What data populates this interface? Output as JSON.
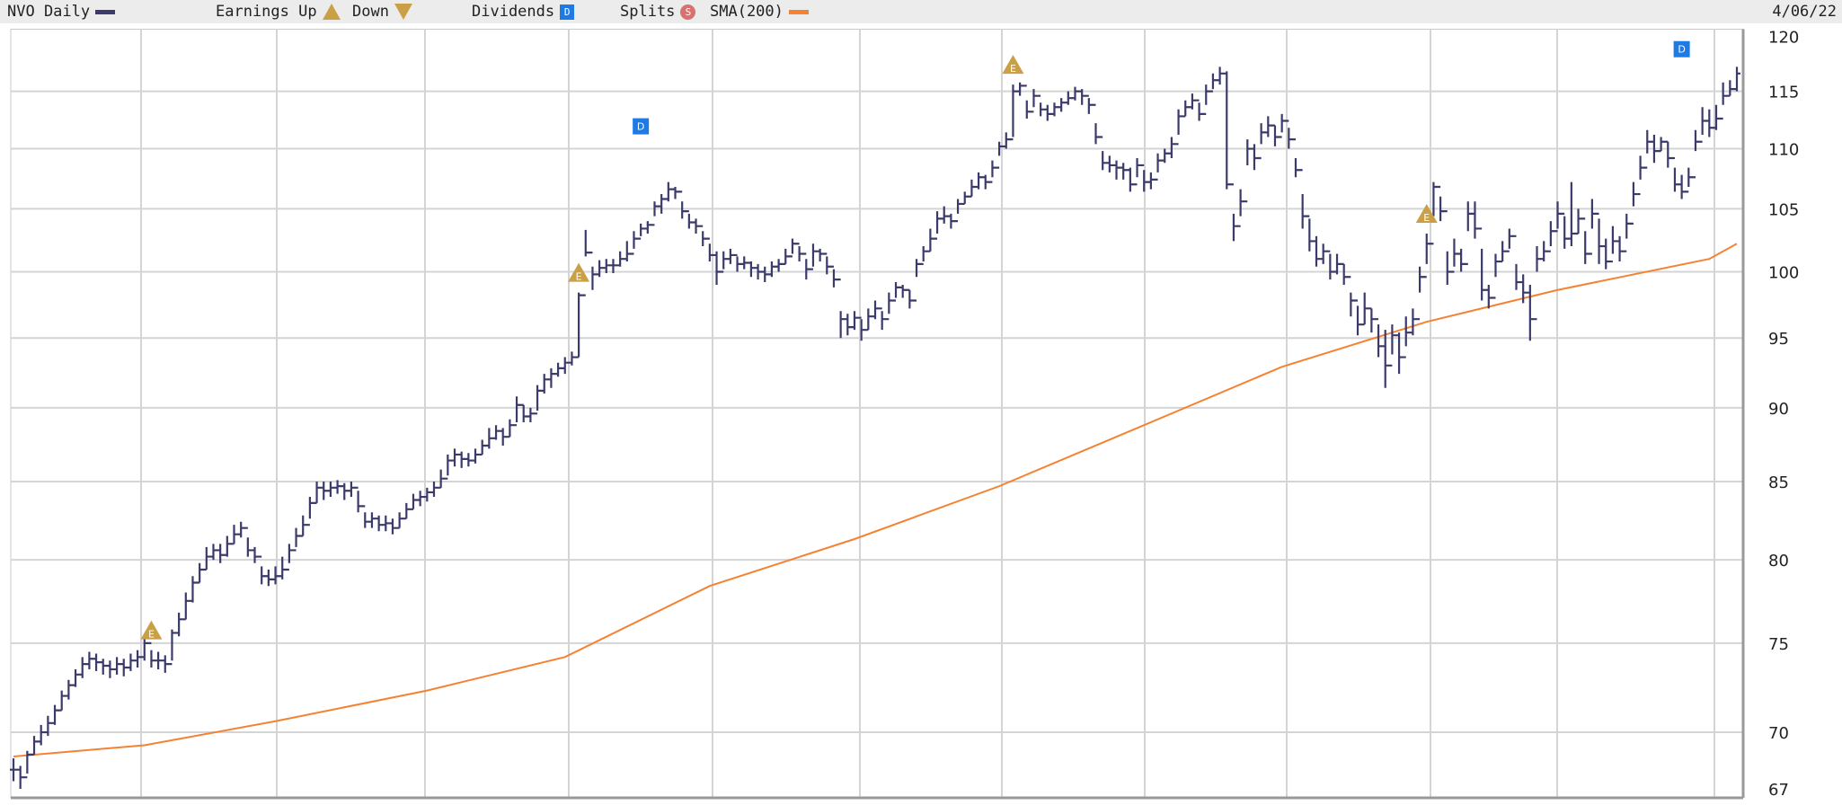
{
  "header": {
    "symbol_label": "NVO Daily",
    "earnings_up_label": "Earnings Up",
    "down_label": "Down",
    "dividends_label": "Dividends",
    "splits_label": "Splits",
    "sma_label": "SMA(200)",
    "date": "4/06/22",
    "earnings_glyph": "E",
    "dividend_glyph": "D",
    "split_glyph": "S"
  },
  "colors": {
    "price": "#3b3b6b",
    "sma": "#f58232",
    "earnings": "#c9a046",
    "dividend": "#1e7be6",
    "split": "#d9716e",
    "grid": "#d4d4d4"
  },
  "chart_data": {
    "type": "ohlc-bar",
    "symbol": "NVO",
    "y_scale": "log",
    "ylim": [
      67,
      120
    ],
    "y_ticks": [
      "120",
      "115",
      "110",
      "105",
      "100",
      "95",
      "90",
      "85",
      "80",
      "75",
      "70",
      "67"
    ],
    "grid": true,
    "bar_format": [
      "low",
      "high",
      "close"
    ],
    "bars": [
      [
        67.4,
        68.6,
        68.0
      ],
      [
        67.0,
        68.2,
        67.6
      ],
      [
        67.8,
        69.0,
        68.8
      ],
      [
        68.8,
        69.8,
        69.5
      ],
      [
        69.3,
        70.4,
        70.0
      ],
      [
        69.8,
        70.9,
        70.5
      ],
      [
        70.4,
        71.5,
        71.2
      ],
      [
        71.2,
        72.3,
        72.0
      ],
      [
        71.8,
        72.9,
        72.6
      ],
      [
        72.5,
        73.5,
        73.2
      ],
      [
        73.0,
        74.2,
        73.8
      ],
      [
        73.5,
        74.5,
        74.1
      ],
      [
        73.4,
        74.4,
        73.9
      ],
      [
        73.2,
        74.1,
        73.7
      ],
      [
        73.0,
        74.0,
        73.5
      ],
      [
        73.2,
        74.2,
        73.8
      ],
      [
        73.1,
        74.1,
        73.6
      ],
      [
        73.4,
        74.4,
        74.0
      ],
      [
        73.6,
        74.6,
        74.2
      ],
      [
        74.0,
        75.4,
        75.0
      ],
      [
        73.6,
        74.6,
        74.0
      ],
      [
        73.5,
        74.5,
        74.0
      ],
      [
        73.3,
        74.3,
        73.8
      ],
      [
        74.0,
        75.8,
        75.6
      ],
      [
        75.4,
        76.8,
        76.4
      ],
      [
        76.4,
        78.0,
        77.5
      ],
      [
        77.4,
        79.0,
        78.6
      ],
      [
        78.6,
        79.8,
        79.4
      ],
      [
        79.4,
        80.8,
        80.2
      ],
      [
        80.0,
        81.0,
        80.6
      ],
      [
        79.8,
        81.0,
        80.3
      ],
      [
        80.2,
        81.5,
        81.0
      ],
      [
        81.0,
        82.2,
        81.6
      ],
      [
        81.4,
        82.4,
        82.0
      ],
      [
        80.2,
        81.4,
        80.6
      ],
      [
        79.8,
        80.8,
        80.2
      ],
      [
        78.5,
        79.6,
        79.0
      ],
      [
        78.4,
        79.4,
        78.8
      ],
      [
        78.5,
        79.6,
        79.0
      ],
      [
        78.8,
        80.2,
        79.4
      ],
      [
        79.8,
        81.0,
        80.6
      ],
      [
        80.8,
        82.0,
        81.5
      ],
      [
        81.5,
        82.8,
        82.2
      ],
      [
        82.6,
        84.0,
        83.6
      ],
      [
        83.6,
        85.0,
        84.6
      ],
      [
        83.8,
        85.0,
        84.4
      ],
      [
        84.0,
        85.0,
        84.6
      ],
      [
        84.2,
        85.1,
        84.7
      ],
      [
        83.8,
        84.9,
        84.4
      ],
      [
        84.0,
        85.0,
        84.6
      ],
      [
        83.0,
        84.4,
        83.4
      ],
      [
        82.0,
        83.0,
        82.4
      ],
      [
        82.0,
        83.0,
        82.6
      ],
      [
        81.8,
        82.8,
        82.2
      ],
      [
        81.8,
        82.8,
        82.3
      ],
      [
        81.6,
        82.6,
        82.0
      ],
      [
        82.0,
        83.0,
        82.6
      ],
      [
        82.6,
        83.6,
        83.2
      ],
      [
        83.2,
        84.2,
        83.8
      ],
      [
        83.4,
        84.4,
        84.0
      ],
      [
        83.7,
        84.6,
        84.3
      ],
      [
        84.0,
        85.0,
        84.6
      ],
      [
        84.6,
        85.8,
        85.2
      ],
      [
        85.4,
        86.8,
        86.4
      ],
      [
        86.0,
        87.2,
        86.8
      ],
      [
        85.9,
        87.0,
        86.5
      ],
      [
        86.0,
        86.9,
        86.4
      ],
      [
        86.2,
        87.2,
        86.8
      ],
      [
        86.8,
        87.8,
        87.4
      ],
      [
        87.2,
        88.6,
        87.9
      ],
      [
        87.8,
        88.8,
        88.4
      ],
      [
        87.4,
        88.6,
        88.0
      ],
      [
        88.0,
        89.2,
        88.8
      ],
      [
        89.0,
        90.8,
        90.2
      ],
      [
        89.0,
        90.2,
        89.4
      ],
      [
        89.0,
        90.0,
        89.6
      ],
      [
        89.8,
        91.6,
        91.2
      ],
      [
        91.0,
        92.4,
        92.0
      ],
      [
        91.4,
        92.8,
        92.4
      ],
      [
        92.2,
        93.2,
        92.8
      ],
      [
        92.4,
        93.6,
        93.2
      ],
      [
        93.0,
        94.0,
        93.6
      ],
      [
        93.6,
        98.4,
        98.2
      ],
      [
        101.2,
        103.3,
        101.5
      ],
      [
        98.6,
        100.4,
        99.8
      ],
      [
        99.6,
        100.9,
        100.3
      ],
      [
        99.9,
        101.0,
        100.5
      ],
      [
        99.9,
        101.0,
        100.5
      ],
      [
        100.4,
        101.6,
        101.0
      ],
      [
        100.8,
        102.4,
        101.4
      ],
      [
        101.8,
        103.2,
        102.6
      ],
      [
        102.8,
        103.8,
        103.4
      ],
      [
        103.0,
        104.0,
        103.7
      ],
      [
        104.4,
        105.6,
        105.2
      ],
      [
        104.6,
        106.2,
        105.8
      ],
      [
        105.6,
        107.2,
        106.6
      ],
      [
        105.8,
        106.8,
        106.4
      ],
      [
        104.2,
        105.6,
        104.8
      ],
      [
        103.4,
        104.6,
        103.9
      ],
      [
        103.0,
        104.2,
        103.6
      ],
      [
        102.0,
        103.2,
        102.6
      ],
      [
        100.8,
        102.2,
        101.3
      ],
      [
        99.0,
        101.6,
        100.0
      ],
      [
        100.2,
        101.6,
        101.0
      ],
      [
        100.6,
        101.8,
        101.3
      ],
      [
        100.0,
        101.2,
        100.6
      ],
      [
        100.2,
        101.2,
        100.7
      ],
      [
        99.6,
        100.8,
        100.3
      ],
      [
        99.4,
        100.6,
        100.0
      ],
      [
        99.2,
        100.4,
        99.8
      ],
      [
        99.6,
        100.8,
        100.4
      ],
      [
        100.0,
        101.0,
        100.6
      ],
      [
        100.6,
        101.8,
        101.2
      ],
      [
        101.4,
        102.6,
        102.2
      ],
      [
        100.8,
        102.0,
        101.4
      ],
      [
        99.4,
        101.0,
        100.2
      ],
      [
        100.4,
        102.2,
        101.6
      ],
      [
        100.8,
        101.8,
        101.4
      ],
      [
        99.8,
        101.2,
        100.4
      ],
      [
        98.8,
        100.2,
        99.4
      ],
      [
        95.0,
        97.0,
        96.4
      ],
      [
        95.2,
        96.8,
        95.8
      ],
      [
        95.6,
        97.0,
        96.5
      ],
      [
        94.8,
        96.4,
        95.6
      ],
      [
        95.6,
        97.2,
        96.6
      ],
      [
        96.4,
        97.8,
        97.2
      ],
      [
        95.6,
        97.0,
        96.4
      ],
      [
        96.8,
        98.4,
        97.8
      ],
      [
        98.0,
        99.2,
        98.8
      ],
      [
        98.0,
        99.0,
        98.6
      ],
      [
        97.2,
        98.6,
        97.8
      ],
      [
        99.6,
        101.0,
        100.6
      ],
      [
        100.8,
        102.0,
        101.6
      ],
      [
        101.6,
        103.4,
        102.6
      ],
      [
        103.0,
        104.8,
        104.2
      ],
      [
        103.8,
        105.2,
        104.4
      ],
      [
        103.4,
        104.6,
        104.0
      ],
      [
        104.6,
        105.8,
        105.4
      ],
      [
        105.4,
        106.4,
        106.0
      ],
      [
        106.0,
        107.4,
        106.8
      ],
      [
        106.6,
        108.0,
        107.6
      ],
      [
        106.6,
        107.8,
        107.2
      ],
      [
        107.6,
        109.0,
        108.4
      ],
      [
        109.4,
        110.6,
        110.2
      ],
      [
        110.0,
        111.4,
        110.8
      ],
      [
        111.0,
        115.6,
        115.0
      ],
      [
        114.6,
        115.8,
        115.5
      ],
      [
        112.6,
        114.2,
        113.2
      ],
      [
        113.6,
        115.2,
        114.6
      ],
      [
        112.8,
        114.0,
        113.4
      ],
      [
        112.4,
        113.8,
        113.0
      ],
      [
        112.8,
        114.0,
        113.6
      ],
      [
        113.2,
        114.4,
        114.0
      ],
      [
        113.8,
        115.0,
        114.4
      ],
      [
        114.2,
        115.4,
        115.0
      ],
      [
        113.8,
        115.2,
        114.6
      ],
      [
        113.0,
        114.4,
        113.8
      ],
      [
        110.4,
        112.2,
        111.0
      ],
      [
        108.2,
        109.8,
        108.8
      ],
      [
        108.0,
        109.4,
        108.6
      ],
      [
        107.4,
        109.0,
        108.4
      ],
      [
        107.4,
        108.8,
        108.2
      ],
      [
        106.4,
        108.4,
        107.0
      ],
      [
        107.6,
        109.2,
        108.6
      ],
      [
        106.4,
        108.2,
        107.2
      ],
      [
        106.6,
        108.0,
        107.4
      ],
      [
        108.0,
        109.6,
        109.0
      ],
      [
        108.8,
        110.0,
        109.6
      ],
      [
        109.2,
        111.0,
        110.4
      ],
      [
        111.2,
        113.4,
        112.8
      ],
      [
        112.8,
        114.2,
        113.6
      ],
      [
        113.4,
        114.8,
        114.2
      ],
      [
        112.4,
        114.0,
        113.0
      ],
      [
        113.8,
        115.6,
        115.0
      ],
      [
        115.2,
        116.6,
        116.0
      ],
      [
        115.6,
        117.2,
        116.6
      ],
      [
        106.6,
        116.8,
        107.0
      ],
      [
        102.4,
        104.6,
        103.6
      ],
      [
        104.4,
        106.6,
        105.6
      ],
      [
        108.6,
        110.8,
        110.0
      ],
      [
        108.2,
        110.4,
        109.2
      ],
      [
        110.4,
        112.2,
        111.4
      ],
      [
        111.0,
        112.8,
        112.0
      ],
      [
        110.2,
        112.0,
        111.0
      ],
      [
        111.4,
        113.0,
        112.4
      ],
      [
        110.0,
        111.8,
        110.8
      ],
      [
        107.6,
        109.2,
        108.2
      ],
      [
        103.4,
        106.2,
        104.4
      ],
      [
        101.6,
        104.2,
        102.4
      ],
      [
        100.4,
        102.8,
        101.0
      ],
      [
        100.6,
        102.2,
        101.6
      ],
      [
        99.4,
        101.4,
        100.0
      ],
      [
        99.8,
        101.4,
        100.6
      ],
      [
        99.0,
        100.6,
        99.6
      ],
      [
        96.6,
        98.4,
        97.8
      ],
      [
        95.2,
        97.4,
        96.0
      ],
      [
        96.0,
        98.4,
        97.2
      ],
      [
        95.4,
        97.2,
        96.4
      ],
      [
        93.6,
        96.0,
        94.4
      ],
      [
        91.4,
        95.6,
        93.0
      ],
      [
        93.8,
        96.0,
        95.2
      ],
      [
        92.4,
        95.4,
        93.6
      ],
      [
        94.4,
        96.6,
        95.4
      ],
      [
        95.2,
        97.2,
        96.4
      ],
      [
        98.4,
        100.4,
        99.6
      ],
      [
        100.6,
        103.0,
        102.2
      ],
      [
        104.4,
        107.2,
        106.8
      ],
      [
        104.0,
        106.0,
        104.8
      ],
      [
        99.0,
        101.6,
        100.0
      ],
      [
        100.4,
        102.6,
        101.4
      ],
      [
        100.0,
        101.8,
        100.6
      ],
      [
        103.2,
        105.6,
        104.6
      ],
      [
        102.6,
        105.6,
        103.4
      ],
      [
        97.8,
        101.8,
        98.6
      ],
      [
        97.2,
        99.0,
        98.0
      ],
      [
        99.6,
        101.4,
        100.8
      ],
      [
        100.8,
        102.4,
        101.6
      ],
      [
        101.8,
        103.4,
        102.8
      ],
      [
        98.6,
        100.6,
        99.2
      ],
      [
        97.6,
        99.8,
        98.4
      ],
      [
        94.8,
        99.0,
        96.4
      ],
      [
        100.0,
        102.0,
        101.0
      ],
      [
        100.8,
        102.4,
        101.6
      ],
      [
        102.0,
        104.0,
        103.2
      ],
      [
        103.4,
        105.6,
        104.6
      ],
      [
        101.8,
        104.4,
        102.6
      ],
      [
        102.0,
        107.2,
        103.0
      ],
      [
        103.0,
        105.0,
        104.2
      ],
      [
        100.6,
        103.2,
        101.4
      ],
      [
        103.4,
        105.8,
        104.6
      ],
      [
        100.6,
        104.2,
        102.0
      ],
      [
        100.2,
        102.6,
        100.8
      ],
      [
        101.4,
        103.6,
        102.4
      ],
      [
        100.8,
        102.8,
        101.6
      ],
      [
        102.6,
        104.6,
        103.8
      ],
      [
        105.2,
        107.2,
        106.2
      ],
      [
        107.4,
        109.4,
        108.4
      ],
      [
        109.6,
        111.6,
        110.6
      ],
      [
        108.8,
        111.2,
        109.8
      ],
      [
        109.8,
        111.0,
        110.6
      ],
      [
        108.4,
        110.6,
        109.2
      ],
      [
        106.4,
        108.4,
        107.0
      ],
      [
        105.8,
        107.8,
        106.4
      ],
      [
        106.8,
        108.4,
        107.6
      ],
      [
        109.8,
        111.6,
        110.6
      ],
      [
        111.2,
        113.6,
        112.4
      ],
      [
        111.0,
        113.4,
        111.8
      ],
      [
        111.6,
        113.8,
        112.6
      ],
      [
        113.8,
        115.8,
        114.6
      ],
      [
        114.6,
        116.0,
        115.2
      ],
      [
        115.0,
        117.2,
        116.6
      ]
    ],
    "sma_200": [
      [
        0,
        68.7
      ],
      [
        19,
        69.3
      ],
      [
        38,
        70.6
      ],
      [
        60,
        72.3
      ],
      [
        80,
        74.2
      ],
      [
        101,
        78.4
      ],
      [
        122,
        81.3
      ],
      [
        143,
        84.7
      ],
      [
        163,
        88.6
      ],
      [
        184,
        92.9
      ],
      [
        205,
        96.2
      ],
      [
        224,
        98.6
      ],
      [
        246,
        101.0
      ],
      [
        250,
        102.2
      ]
    ],
    "events": [
      {
        "type": "earnings",
        "bar": 20
      },
      {
        "type": "earnings",
        "bar": 82
      },
      {
        "type": "dividend",
        "bar": 91
      },
      {
        "type": "earnings",
        "bar": 145
      },
      {
        "type": "earnings",
        "bar": 205
      },
      {
        "type": "dividend",
        "bar": 242
      }
    ]
  }
}
